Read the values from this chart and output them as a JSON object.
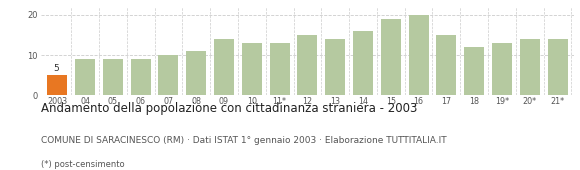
{
  "categories": [
    "2003",
    "04",
    "05",
    "06",
    "07",
    "08",
    "09",
    "10",
    "11*",
    "12",
    "13",
    "14",
    "15",
    "16",
    "17",
    "18",
    "19*",
    "20*",
    "21*"
  ],
  "values": [
    5,
    9,
    9,
    9,
    10,
    11,
    14,
    13,
    13,
    15,
    14,
    16,
    19,
    20,
    15,
    12,
    13,
    14,
    14
  ],
  "bar_color_default": "#b5c9a0",
  "bar_color_highlight": "#e87722",
  "highlight_index": 0,
  "highlight_label": "5",
  "ylim": [
    0,
    22
  ],
  "yticks": [
    0,
    10,
    20
  ],
  "title": "Andamento della popolazione con cittadinanza straniera - 2003",
  "subtitle": "COMUNE DI SARACINESCO (RM) · Dati ISTAT 1° gennaio 2003 · Elaborazione TUTTITALIA.IT",
  "footnote": "(*) post-censimento",
  "title_fontsize": 8.5,
  "subtitle_fontsize": 6.5,
  "footnote_fontsize": 6.0,
  "grid_color": "#cccccc",
  "background_color": "#ffffff"
}
